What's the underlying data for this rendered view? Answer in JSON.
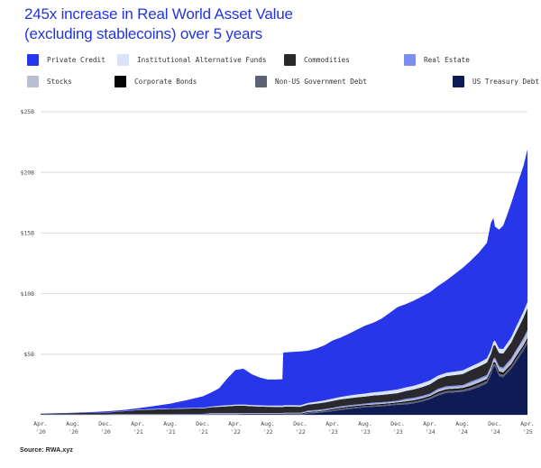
{
  "title": {
    "line1": "245x increase in Real World Asset Value",
    "line2": "(excluding stablecoins) over 5 years"
  },
  "source": "Source: RWA.xyz",
  "legend": {
    "rows": [
      [
        {
          "label": "Private Credit",
          "color": "#2736e8"
        },
        {
          "label": "Institutional Alternative Funds",
          "color": "#d8e2f8"
        },
        {
          "label": "Commodities",
          "color": "#29292d"
        },
        {
          "label": "Real Estate",
          "color": "#7b8fef"
        }
      ],
      [
        {
          "label": "Stocks",
          "color": "#b9bed2"
        },
        {
          "label": "Corporate Bonds",
          "color": "#050505"
        },
        {
          "label": "Non-US Government Debt",
          "color": "#5b6176"
        },
        {
          "label": "US Treasury Debt",
          "color": "#0f1b55"
        }
      ]
    ]
  },
  "chart_data": {
    "type": "area",
    "stacked": true,
    "unit": "USD billions",
    "grid": true,
    "legend_position": "top",
    "ylim": [
      0,
      25
    ],
    "y_ticks": [
      {
        "value": 25,
        "label": "$25B"
      },
      {
        "value": 20,
        "label": "$20B"
      },
      {
        "value": 15,
        "label": "$15B"
      },
      {
        "value": 10,
        "label": "$10B"
      },
      {
        "value": 5,
        "label": "$5B"
      }
    ],
    "x_unit": "months since Apr 2020",
    "x_tick_positions": [
      0,
      4,
      8,
      12,
      16,
      20,
      24,
      28,
      32,
      36,
      40,
      44,
      48,
      52,
      56,
      60
    ],
    "x_ticks": [
      {
        "line1": "Apr.",
        "line2": "'20"
      },
      {
        "line1": "Aug.",
        "line2": "'20"
      },
      {
        "line1": "Dec.",
        "line2": "'20"
      },
      {
        "line1": "Apr.",
        "line2": "'21"
      },
      {
        "line1": "Aug.",
        "line2": "'21"
      },
      {
        "line1": "Dec.",
        "line2": "'21"
      },
      {
        "line1": "Apr.",
        "line2": "'22"
      },
      {
        "line1": "Aug.",
        "line2": "'22"
      },
      {
        "line1": "Dec.",
        "line2": "'22"
      },
      {
        "line1": "Apr.",
        "line2": "'23"
      },
      {
        "line1": "Aug.",
        "line2": "'23"
      },
      {
        "line1": "Dec.",
        "line2": "'23"
      },
      {
        "line1": "Apr.",
        "line2": "'24"
      },
      {
        "line1": "Aug.",
        "line2": "'24"
      },
      {
        "line1": "Dec.",
        "line2": "'24"
      },
      {
        "line1": "Apr.",
        "line2": "'25"
      }
    ],
    "x": [
      0,
      2,
      4,
      6,
      8,
      10,
      12,
      14,
      16,
      18,
      20,
      21,
      22,
      23,
      24,
      25,
      26,
      27,
      28,
      29,
      29.8,
      29.9,
      30,
      31,
      32,
      33,
      34,
      35,
      36,
      37,
      38,
      39,
      40,
      41,
      42,
      43,
      44,
      45,
      46,
      47,
      48,
      49,
      50,
      51,
      52,
      53,
      54,
      55,
      55.5,
      55.8,
      56,
      56.5,
      57,
      57.5,
      58,
      58.5,
      59,
      59.5,
      60
    ],
    "series": [
      {
        "name": "US Treasury Debt",
        "color": "#0f1b55",
        "values": [
          0,
          0,
          0,
          0,
          0,
          0,
          0,
          0,
          0,
          0,
          0,
          0,
          0,
          0,
          0,
          0,
          0,
          0,
          0,
          0,
          0,
          0,
          0,
          0,
          0,
          0.1,
          0.15,
          0.22,
          0.3,
          0.4,
          0.48,
          0.55,
          0.62,
          0.66,
          0.7,
          0.76,
          0.83,
          0.86,
          0.95,
          1.1,
          1.3,
          1.6,
          1.8,
          1.85,
          1.9,
          2.05,
          2.3,
          2.6,
          3.3,
          3.95,
          4.0,
          3.2,
          3.1,
          3.45,
          3.8,
          4.3,
          4.8,
          5.3,
          5.9
        ]
      },
      {
        "name": "Non-US Government Debt",
        "color": "#5b6176",
        "values": [
          0.01,
          0.01,
          0.01,
          0.01,
          0.01,
          0.01,
          0.01,
          0.01,
          0.01,
          0.02,
          0.02,
          0.04,
          0.04,
          0.04,
          0.04,
          0.05,
          0.05,
          0.05,
          0.05,
          0.05,
          0.05,
          0.05,
          0.06,
          0.06,
          0.06,
          0.09,
          0.09,
          0.09,
          0.09,
          0.11,
          0.11,
          0.11,
          0.11,
          0.11,
          0.11,
          0.11,
          0.11,
          0.14,
          0.14,
          0.14,
          0.14,
          0.17,
          0.17,
          0.17,
          0.17,
          0.2,
          0.2,
          0.2,
          0.2,
          0.2,
          0.2,
          0.21,
          0.21,
          0.21,
          0.21,
          0.23,
          0.23,
          0.23,
          0.25
        ]
      },
      {
        "name": "Corporate Bonds",
        "color": "#050505",
        "values": [
          0.01,
          0.01,
          0.01,
          0.01,
          0.01,
          0.01,
          0.01,
          0.01,
          0.01,
          0.01,
          0.01,
          0.02,
          0.02,
          0.02,
          0.02,
          0.02,
          0.02,
          0.02,
          0.02,
          0.02,
          0.02,
          0.02,
          0.04,
          0.04,
          0.04,
          0.04,
          0.04,
          0.04,
          0.08,
          0.08,
          0.08,
          0.08,
          0.08,
          0.08,
          0.08,
          0.08,
          0.08,
          0.11,
          0.11,
          0.11,
          0.11,
          0.13,
          0.13,
          0.13,
          0.13,
          0.15,
          0.15,
          0.15,
          0.15,
          0.15,
          0.15,
          0.17,
          0.17,
          0.17,
          0.17,
          0.19,
          0.19,
          0.19,
          0.2
        ]
      },
      {
        "name": "Stocks",
        "color": "#b9bed2",
        "values": [
          0.01,
          0.01,
          0.01,
          0.01,
          0.01,
          0.01,
          0.01,
          0.01,
          0.01,
          0.01,
          0.01,
          0.03,
          0.03,
          0.03,
          0.03,
          0.03,
          0.03,
          0.03,
          0.03,
          0.03,
          0.03,
          0.03,
          0.03,
          0.03,
          0.03,
          0.05,
          0.05,
          0.05,
          0.05,
          0.05,
          0.05,
          0.05,
          0.05,
          0.08,
          0.08,
          0.08,
          0.08,
          0.11,
          0.11,
          0.11,
          0.11,
          0.16,
          0.16,
          0.16,
          0.16,
          0.22,
          0.22,
          0.22,
          0.22,
          0.22,
          0.25,
          0.3,
          0.3,
          0.33,
          0.36,
          0.4,
          0.43,
          0.46,
          0.5
        ]
      },
      {
        "name": "Real Estate",
        "color": "#7b8fef",
        "values": [
          0.01,
          0.01,
          0.01,
          0.01,
          0.01,
          0.03,
          0.03,
          0.03,
          0.03,
          0.03,
          0.03,
          0.05,
          0.05,
          0.05,
          0.05,
          0.05,
          0.05,
          0.05,
          0.05,
          0.05,
          0.05,
          0.05,
          0.05,
          0.05,
          0.05,
          0.07,
          0.07,
          0.07,
          0.07,
          0.07,
          0.07,
          0.07,
          0.07,
          0.07,
          0.07,
          0.07,
          0.07,
          0.1,
          0.1,
          0.1,
          0.1,
          0.1,
          0.1,
          0.1,
          0.1,
          0.12,
          0.12,
          0.12,
          0.12,
          0.12,
          0.12,
          0.12,
          0.12,
          0.13,
          0.13,
          0.13,
          0.13,
          0.15,
          0.15
        ]
      },
      {
        "name": "Commodities",
        "color": "#29292d",
        "values": [
          0.05,
          0.07,
          0.1,
          0.12,
          0.15,
          0.22,
          0.33,
          0.38,
          0.42,
          0.44,
          0.46,
          0.48,
          0.52,
          0.56,
          0.6,
          0.6,
          0.56,
          0.53,
          0.51,
          0.5,
          0.5,
          0.49,
          0.49,
          0.49,
          0.48,
          0.5,
          0.52,
          0.54,
          0.55,
          0.56,
          0.57,
          0.58,
          0.58,
          0.59,
          0.6,
          0.61,
          0.62,
          0.64,
          0.68,
          0.72,
          0.76,
          0.8,
          0.83,
          0.86,
          0.9,
          0.94,
          0.98,
          1.02,
          1.03,
          1.05,
          1.05,
          1.1,
          1.15,
          1.22,
          1.3,
          1.42,
          1.55,
          1.68,
          1.8
        ]
      },
      {
        "name": "Institutional Alternative Funds",
        "color": "#d8e2f8",
        "values": [
          0,
          0,
          0,
          0,
          0.01,
          0.02,
          0.03,
          0.04,
          0.04,
          0.05,
          0.05,
          0.06,
          0.08,
          0.09,
          0.1,
          0.1,
          0.1,
          0.1,
          0.1,
          0.11,
          0.11,
          0.12,
          0.12,
          0.12,
          0.12,
          0.14,
          0.16,
          0.18,
          0.2,
          0.21,
          0.23,
          0.24,
          0.25,
          0.26,
          0.28,
          0.29,
          0.3,
          0.3,
          0.31,
          0.32,
          0.33,
          0.28,
          0.28,
          0.29,
          0.3,
          0.3,
          0.32,
          0.34,
          0.35,
          0.35,
          0.35,
          0.36,
          0.38,
          0.4,
          0.42,
          0.45,
          0.48,
          0.5,
          0.52
        ]
      },
      {
        "name": "Private Credit",
        "color": "#2736e8",
        "values": [
          0.01,
          0.02,
          0.03,
          0.05,
          0.08,
          0.08,
          0.12,
          0.25,
          0.4,
          0.65,
          0.95,
          1.15,
          1.45,
          2.2,
          2.85,
          2.95,
          2.55,
          2.3,
          2.15,
          2.15,
          2.18,
          4.35,
          4.35,
          4.4,
          4.45,
          4.3,
          4.4,
          4.55,
          4.8,
          4.9,
          5.1,
          5.35,
          5.6,
          5.75,
          6.0,
          6.4,
          6.8,
          6.87,
          7.02,
          7.17,
          7.27,
          7.4,
          7.62,
          8.04,
          8.45,
          8.73,
          9.08,
          9.54,
          10.49,
          10.2,
          9.4,
          9.82,
          10.17,
          10.6,
          11.08,
          11.4,
          11.72,
          12.02,
          12.58
        ]
      }
    ]
  }
}
